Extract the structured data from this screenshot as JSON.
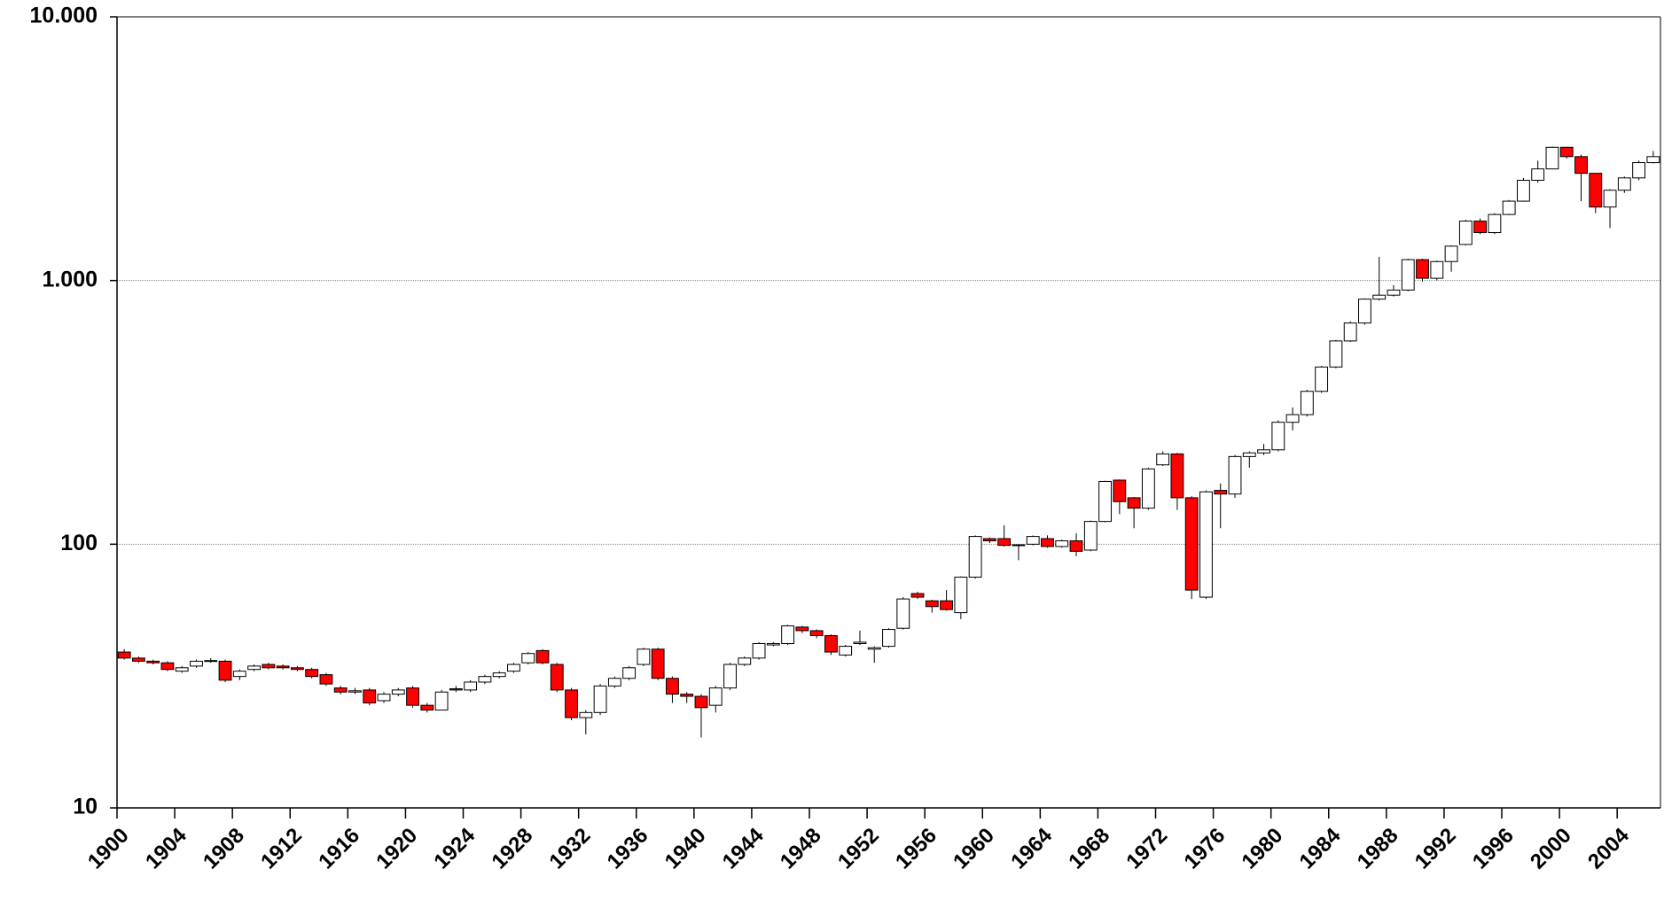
{
  "chart_data": {
    "type": "candlestick",
    "categories": [
      "1900",
      null,
      null,
      null,
      "1904",
      null,
      null,
      null,
      "1908",
      null,
      null,
      null,
      "1912",
      null,
      null,
      null,
      "1916",
      null,
      null,
      null,
      "1920",
      null,
      null,
      null,
      "1924",
      null,
      null,
      null,
      "1928",
      null,
      null,
      null,
      "1932",
      null,
      null,
      null,
      "1936",
      null,
      null,
      null,
      "1940",
      null,
      null,
      null,
      "1944",
      null,
      null,
      null,
      "1948",
      null,
      null,
      null,
      "1952",
      null,
      null,
      null,
      "1956",
      null,
      null,
      null,
      "1960",
      null,
      null,
      null,
      "1964",
      null,
      null,
      null,
      "1968",
      null,
      null,
      null,
      "1972",
      null,
      null,
      null,
      "1976",
      null,
      null,
      null,
      "1980",
      null,
      null,
      null,
      "1984",
      null,
      null,
      null,
      "1988",
      null,
      null,
      null,
      "1992",
      null,
      null,
      null,
      "1996",
      null,
      null,
      null,
      "2000",
      null,
      null,
      null,
      "2004",
      null,
      null
    ],
    "open": [
      39,
      37,
      36,
      35.5,
      33,
      34.5,
      36,
      36,
      31.5,
      33.5,
      35,
      34.5,
      34,
      33.5,
      32,
      28.5,
      27.5,
      28,
      25.5,
      27,
      28.5,
      24.5,
      23.5,
      28.3,
      28,
      30,
      31.5,
      33,
      35.5,
      39.5,
      35,
      28,
      22,
      23,
      29,
      31,
      35,
      40,
      31,
      27,
      26.5,
      24.5,
      28.5,
      35,
      37,
      41.5,
      42,
      48.5,
      47,
      45,
      38,
      42,
      40,
      41,
      48,
      65,
      61,
      61,
      55,
      75,
      105,
      105,
      99,
      100,
      105,
      98,
      103,
      95,
      122,
      175,
      150,
      137,
      200,
      220,
      150,
      63,
      160,
      155,
      215,
      222,
      228,
      290,
      310,
      380,
      470,
      590,
      690,
      850,
      880,
      920,
      1200,
      1020,
      1180,
      1370,
      1680,
      1520,
      1780,
      2000,
      2400,
      2650,
      3200,
      2950,
      2550,
      1900,
      2200,
      2450,
      2800
    ],
    "high": [
      40,
      37.5,
      36.5,
      36,
      34.5,
      36.5,
      37,
      36.5,
      33.5,
      35,
      35.5,
      35,
      34.5,
      34,
      32.5,
      29,
      28.5,
      28.5,
      27.5,
      28.5,
      29,
      25,
      28,
      29,
      30.5,
      32,
      33,
      35.5,
      39,
      40,
      35.5,
      28.5,
      23.5,
      29.5,
      31.5,
      34.5,
      40.5,
      40.5,
      31.5,
      27.5,
      27,
      29,
      35.5,
      37.5,
      42.5,
      42.5,
      49.5,
      49,
      47.5,
      45.5,
      41.5,
      47,
      41,
      48,
      63,
      66,
      61.5,
      67,
      75.5,
      108,
      106,
      118,
      100,
      108,
      108,
      104,
      110,
      123,
      174,
      176,
      151,
      195,
      225,
      222,
      152,
      160,
      170,
      218,
      225,
      240,
      295,
      330,
      385,
      475,
      595,
      700,
      855,
      1230,
      960,
      1210,
      1210,
      1190,
      1360,
      1700,
      1720,
      1800,
      2020,
      2450,
      2850,
      3220,
      3220,
      3000,
      2560,
      2220,
      2480,
      2850,
      3100
    ],
    "low": [
      36.5,
      35.5,
      35,
      33,
      32.5,
      34,
      35.5,
      30,
      30.5,
      33,
      33.5,
      33.5,
      33,
      31,
      29,
      27,
      27,
      24.5,
      25,
      26.5,
      24,
      23,
      23.5,
      27.5,
      27.5,
      29.5,
      31,
      32.5,
      35,
      35,
      27.5,
      21.5,
      19,
      22.5,
      28.5,
      30.5,
      34.5,
      30.5,
      25,
      25,
      18.5,
      23,
      28,
      34.5,
      36.5,
      41,
      41.5,
      46,
      44,
      38,
      37.5,
      41.5,
      35.5,
      40.5,
      47.5,
      62,
      55,
      56,
      52,
      74,
      101,
      98,
      87,
      99,
      97,
      97,
      90,
      94,
      121,
      130,
      115,
      135,
      198,
      135,
      62,
      62,
      115,
      150,
      195,
      218,
      225,
      270,
      305,
      375,
      465,
      585,
      680,
      840,
      870,
      910,
      990,
      1000,
      1080,
      1360,
      1500,
      1500,
      1770,
      1990,
      2350,
      2640,
      2900,
      2000,
      1800,
      1580,
      2150,
      2400,
      2780
    ],
    "close": [
      37,
      36,
      35.5,
      33.5,
      34,
      36,
      36.2,
      30.5,
      33,
      34.5,
      34,
      34,
      33.5,
      31.5,
      29.5,
      27.5,
      27.8,
      25,
      27,
      28,
      24.5,
      23.5,
      27.5,
      28,
      30,
      31.5,
      32.5,
      35,
      38.5,
      35.5,
      28,
      22,
      23,
      29,
      31,
      34,
      40,
      31,
      27,
      26.5,
      24,
      28.5,
      35,
      37,
      42,
      42,
      49,
      47,
      45,
      39,
      41,
      42.5,
      40.5,
      47.5,
      62,
      63,
      58,
      56.5,
      75,
      107,
      103,
      99,
      99.5,
      107,
      98,
      103,
      94,
      122,
      173,
      145,
      137,
      193,
      220,
      150,
      67,
      158,
      155,
      215,
      222,
      228,
      290,
      310,
      380,
      470,
      590,
      690,
      850,
      880,
      920,
      1200,
      1020,
      1180,
      1350,
      1680,
      1520,
      1780,
      2000,
      2400,
      2650,
      3200,
      2950,
      2550,
      1900,
      2200,
      2450,
      2800,
      2950
    ],
    "up_color": "#ffffff",
    "down_color": "#ff0000",
    "log_scale": true,
    "ylim": [
      10,
      10000
    ],
    "yticks": [
      10,
      100,
      {
        "value": 1000,
        "label": "1.000"
      },
      {
        "value": 10000,
        "label": "10.000"
      }
    ],
    "grid": true
  }
}
